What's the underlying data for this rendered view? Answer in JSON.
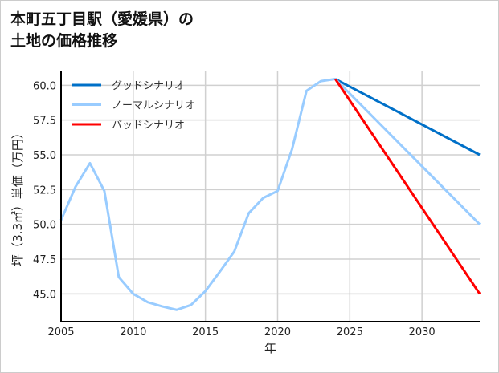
{
  "chart_data": {
    "type": "line",
    "title": "本町五丁目駅（愛媛県）の\n土地の価格推移",
    "xlabel": "年",
    "ylabel": "坪（3.3㎡）単価（万円）",
    "xlim": [
      2005,
      2034
    ],
    "ylim": [
      43.0,
      61.0
    ],
    "xticks": [
      2005,
      2010,
      2015,
      2020,
      2025,
      2030
    ],
    "yticks": [
      45.0,
      47.5,
      50.0,
      52.5,
      55.0,
      57.5,
      60.0
    ],
    "grid": true,
    "legend_position": "top-left",
    "series": [
      {
        "name": "グッドシナリオ",
        "color": "#0070c8",
        "x": [
          2024,
          2034
        ],
        "y": [
          60.45,
          55.0
        ]
      },
      {
        "name": "ノーマルシナリオ",
        "color": "#99ccff",
        "x": [
          2005,
          2006,
          2007,
          2008,
          2009,
          2010,
          2011,
          2012,
          2013,
          2014,
          2015,
          2016,
          2017,
          2018,
          2019,
          2020,
          2021,
          2022,
          2023,
          2024,
          2034
        ],
        "y": [
          50.3,
          52.7,
          54.4,
          52.4,
          46.2,
          45.0,
          44.4,
          44.1,
          43.85,
          44.2,
          45.2,
          46.6,
          48.05,
          50.8,
          51.9,
          52.4,
          55.4,
          59.6,
          60.3,
          60.45,
          50.0
        ]
      },
      {
        "name": "バッドシナリオ",
        "color": "#ff0000",
        "x": [
          2024,
          2034
        ],
        "y": [
          60.45,
          45.0
        ]
      }
    ]
  }
}
